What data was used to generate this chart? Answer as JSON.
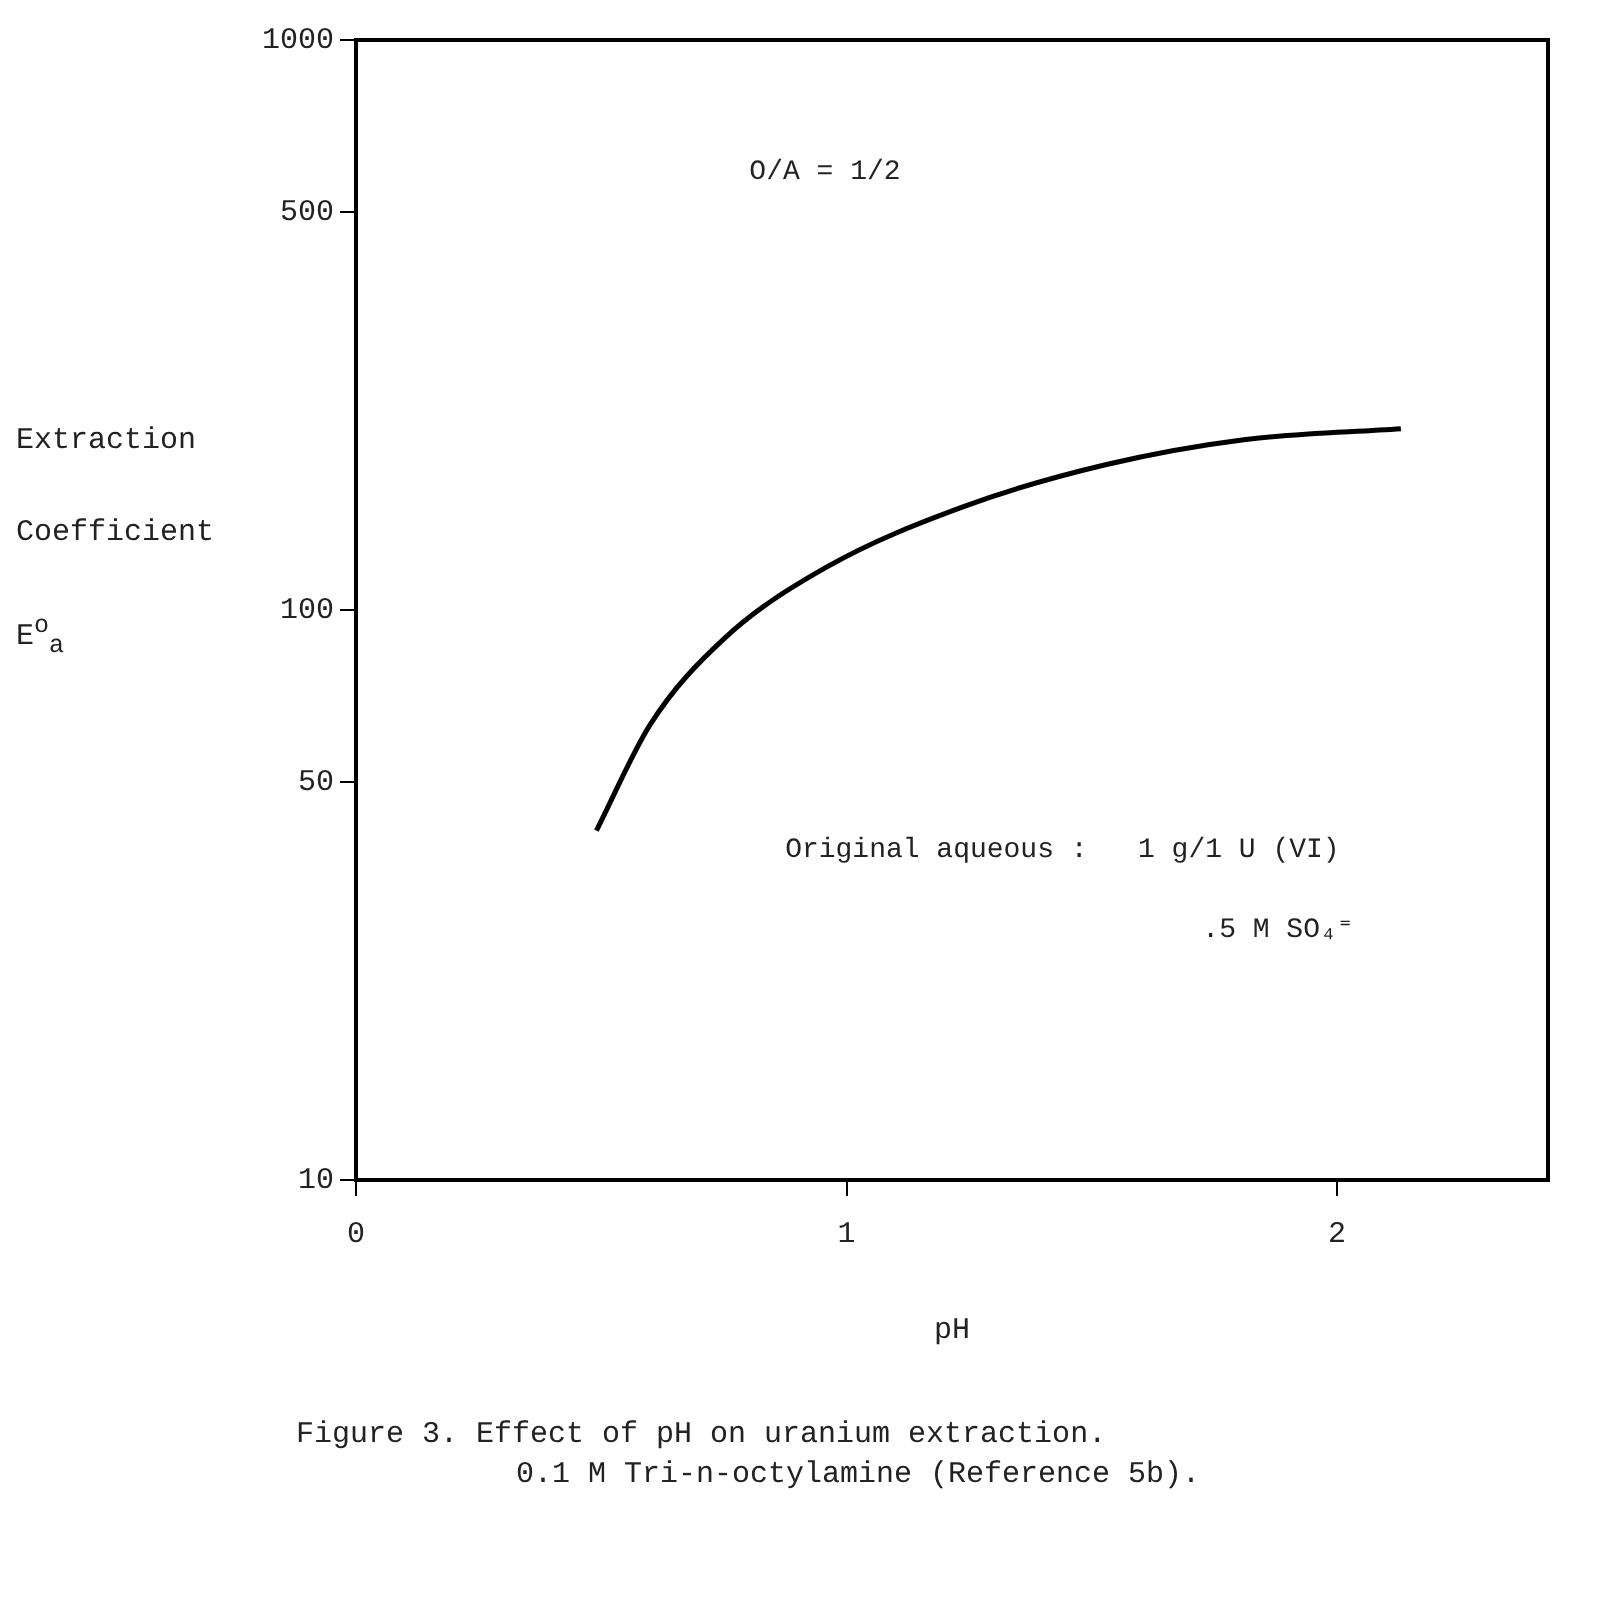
{
  "chart_data": {
    "type": "line",
    "title": "Figure 3.    Effect of pH on uranium extraction.",
    "subtitle": "0.1 M Tri-n-octylamine (Reference 5b).",
    "xlabel": "pH",
    "ylabel": "Extraction Coefficient E$^{o}$$_{a}$",
    "annotations": [
      "O/A = 1/2",
      "Original aqueous :   1 g/1 U (VI)",
      ".5 M SO₄⁼"
    ],
    "x": [
      0.49,
      0.6,
      0.75,
      0.96,
      1.24,
      1.53,
      1.81,
      2.13
    ],
    "series": [
      {
        "color": "#000000",
        "values": [
          41,
          63,
          89,
          119,
          152,
          180,
          199,
          208
        ]
      }
    ],
    "log": "y",
    "xlim": [
      0,
      2.43
    ],
    "xticks": [
      0,
      1,
      2
    ],
    "ylim": [
      10,
      1000
    ],
    "yticks": [
      10,
      50,
      100,
      500,
      1000
    ],
    "grid": false,
    "legend": false,
    "marker": "none",
    "line_style": "solid"
  }
}
